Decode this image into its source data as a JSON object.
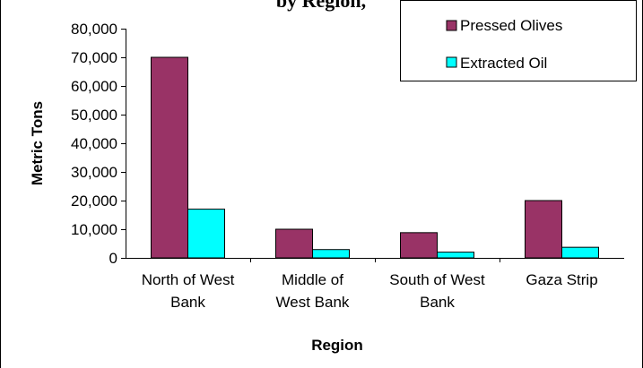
{
  "chart_data": {
    "type": "bar",
    "title": "by Region, ",
    "xlabel": "Region",
    "ylabel": "Metric Tons",
    "categories": [
      [
        "North of West",
        "Bank"
      ],
      [
        "Middle of",
        "West Bank"
      ],
      [
        "South of West",
        "Bank"
      ],
      [
        "Gaza Strip"
      ]
    ],
    "ylim": [
      0,
      80000
    ],
    "yticks": [
      0,
      10000,
      20000,
      30000,
      40000,
      50000,
      60000,
      70000,
      80000
    ],
    "ytick_labels": [
      "0",
      "10,000",
      "20,000",
      "30,000",
      "40,000",
      "50,000",
      "60,000",
      "70,000",
      "80,000"
    ],
    "series": [
      {
        "name": "Pressed Olives",
        "color": "#993366",
        "values": [
          70000,
          10000,
          8800,
          20000
        ]
      },
      {
        "name": "Extracted Oil",
        "color": "#00FFFF",
        "values": [
          17000,
          2900,
          2000,
          3700
        ]
      }
    ],
    "legend_position": "top-right",
    "grid": false
  }
}
